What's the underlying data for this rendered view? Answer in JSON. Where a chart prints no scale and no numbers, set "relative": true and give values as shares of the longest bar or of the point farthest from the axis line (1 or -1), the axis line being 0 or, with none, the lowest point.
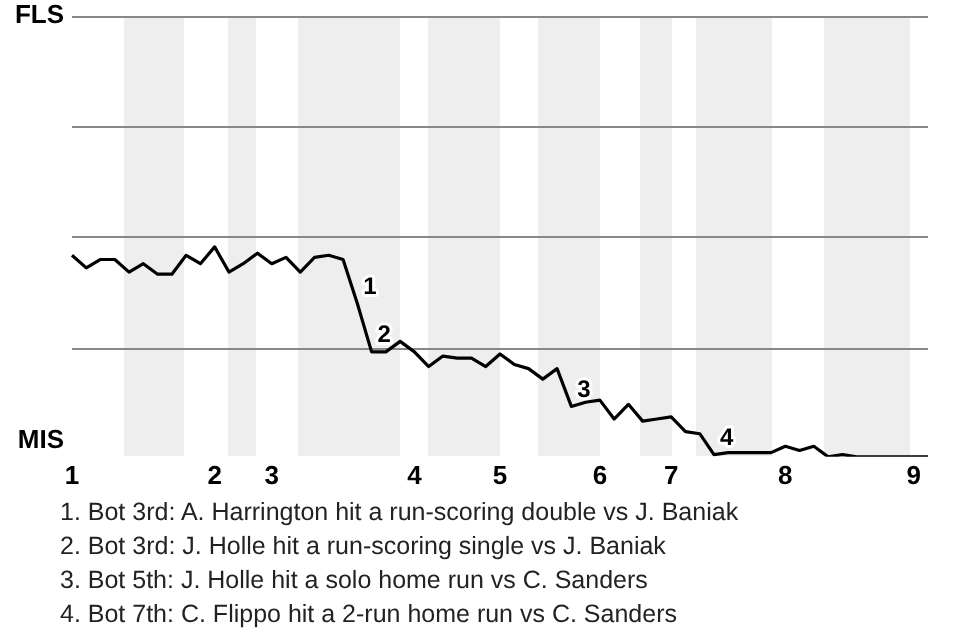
{
  "chart_data": {
    "type": "line",
    "relative": true,
    "categories": [
      "1",
      null,
      null,
      null,
      null,
      null,
      null,
      null,
      null,
      null,
      "2",
      null,
      null,
      null,
      "3",
      null,
      null,
      null,
      null,
      null,
      null,
      null,
      null,
      null,
      "4",
      null,
      null,
      null,
      null,
      null,
      "5",
      null,
      null,
      null,
      null,
      null,
      null,
      "6",
      null,
      null,
      null,
      null,
      "7",
      null,
      null,
      null,
      null,
      null,
      null,
      null,
      "8",
      null,
      null,
      null,
      null,
      null,
      null,
      null,
      null,
      "9",
      null
    ],
    "series": [
      {
        "color": "#000000",
        "values": [
          0.96,
          0.9,
          0.94,
          0.94,
          0.88,
          0.92,
          0.87,
          0.87,
          0.96,
          0.92,
          1,
          0.88,
          0.92,
          0.97,
          0.92,
          0.95,
          0.88,
          0.95,
          0.96,
          0.94,
          0.73,
          0.5,
          0.5,
          0.55,
          0.5,
          0.43,
          0.48,
          0.47,
          0.47,
          0.43,
          0.49,
          0.44,
          0.42,
          0.37,
          0.42,
          0.24,
          0.26,
          0.27,
          0.18,
          0.25,
          0.17,
          0.18,
          0.19,
          0.12,
          0.11,
          0.01,
          0.02,
          0.02,
          0.02,
          0.02,
          0.05,
          0.03,
          0.05,
          0,
          0.01,
          0,
          0,
          0,
          0,
          0,
          0
        ]
      }
    ],
    "ref_lines": [
      {
        "axis": "y",
        "value": 0.52,
        "color": "#888888"
      }
    ],
    "marker": "none",
    "line_style": "solid",
    "legend": false,
    "annotations": [
      "FLS",
      "MIS",
      "1",
      "2",
      "3",
      "4",
      "1. Bot 3rd: A. Harrington hit a run-scoring double vs J. Baniak",
      "2. Bot 3rd: J. Holle hit a run-scoring single vs J. Baniak",
      "3. Bot 5th: J. Holle hit a solo home run vs C. Sanders",
      "4. Bot 7th: C. Flippo hit a 2-run home run vs C. Sanders"
    ]
  }
}
